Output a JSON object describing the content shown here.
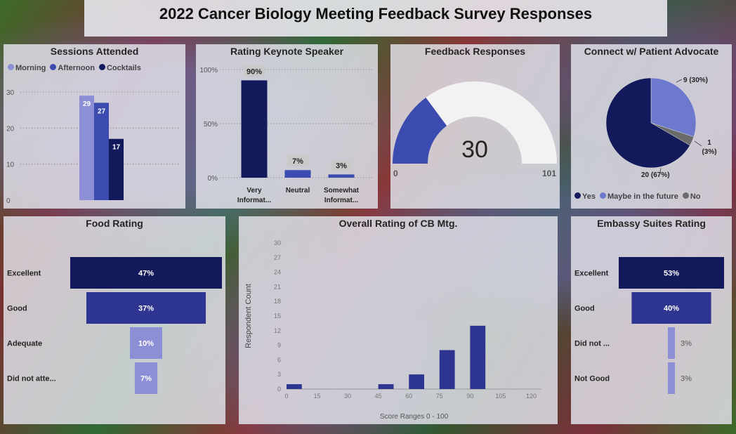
{
  "title": "2022 Cancer Biology Meeting Feedback Survey Responses",
  "colors": {
    "light": "#8d8fd6",
    "mid": "#3c4bb0",
    "dark": "#131a5c",
    "gray": "#6b6b6b",
    "gauge_bg": "#f2f2f2"
  },
  "chart_data": [
    {
      "id": "sessions",
      "type": "bar",
      "title": "Sessions Attended",
      "legend": [
        "Morning",
        "Afternoon",
        "Cocktails"
      ],
      "series": [
        {
          "name": "Morning",
          "values": [
            29
          ]
        },
        {
          "name": "Afternoon",
          "values": [
            27
          ]
        },
        {
          "name": "Cocktails",
          "values": [
            17
          ]
        }
      ],
      "data_labels": [
        "29",
        "27",
        "17"
      ],
      "ylim": [
        0,
        30
      ],
      "yticks": [
        "0",
        "10",
        "20",
        "30"
      ]
    },
    {
      "id": "keynote",
      "type": "bar",
      "title": "Rating Keynote Speaker",
      "categories": [
        "Very Informat...",
        "Neutral",
        "Somewhat Informat..."
      ],
      "category_lines": [
        [
          "Very",
          "Informat..."
        ],
        [
          "Neutral"
        ],
        [
          "Somewhat",
          "Informat..."
        ]
      ],
      "values": [
        90,
        7,
        3
      ],
      "data_labels": [
        "90%",
        "7%",
        "3%"
      ],
      "ylim": [
        0,
        100
      ],
      "yticks": [
        "0%",
        "50%",
        "100%"
      ]
    },
    {
      "id": "responses",
      "type": "gauge",
      "title": "Feedback Responses",
      "value": 30,
      "value_label": "30",
      "min": 0,
      "max": 101,
      "min_label": "0",
      "max_label": "101"
    },
    {
      "id": "advocate",
      "type": "pie",
      "title": "Connect w/ Patient Advocate",
      "slices": [
        {
          "name": "Yes",
          "value": 20,
          "label": "20 (67%)"
        },
        {
          "name": "Maybe in the future",
          "value": 9,
          "label": "9 (30%)"
        },
        {
          "name": "No",
          "value": 1,
          "label_lines": [
            "1",
            "(3%)"
          ]
        }
      ],
      "legend": [
        "Yes",
        "Maybe in the future",
        "No"
      ]
    },
    {
      "id": "food",
      "type": "funnel",
      "title": "Food Rating",
      "categories": [
        "Excellent",
        "Good",
        "Adequate",
        "Did not atte..."
      ],
      "values": [
        47,
        37,
        10,
        7
      ],
      "data_labels": [
        "47%",
        "37%",
        "10%",
        "7%"
      ]
    },
    {
      "id": "overall",
      "type": "histogram",
      "title": "Overall Rating of CB Mtg.",
      "bins": [
        {
          "x0": 0,
          "x1": 7.5,
          "count": 1
        },
        {
          "x0": 45,
          "x1": 52.5,
          "count": 1
        },
        {
          "x0": 60,
          "x1": 67.5,
          "count": 3
        },
        {
          "x0": 75,
          "x1": 82.5,
          "count": 8
        },
        {
          "x0": 90,
          "x1": 97.5,
          "count": 13
        }
      ],
      "xlim": [
        0,
        125
      ],
      "xticks": [
        "0",
        "15",
        "30",
        "45",
        "60",
        "75",
        "90",
        "105",
        "120"
      ],
      "ylim": [
        0,
        30
      ],
      "yticks": [
        "0",
        "3",
        "6",
        "9",
        "12",
        "15",
        "18",
        "21",
        "24",
        "27",
        "30"
      ],
      "xlabel": "Score Ranges 0 - 100",
      "ylabel": "Respondent Count"
    },
    {
      "id": "embassy",
      "type": "funnel",
      "title": "Embassy Suites Rating",
      "categories": [
        "Excellent",
        "Good",
        "Did not ...",
        "Not Good"
      ],
      "values": [
        53,
        40,
        3,
        3
      ],
      "data_labels": [
        "53%",
        "40%",
        "3%",
        "3%"
      ]
    }
  ]
}
